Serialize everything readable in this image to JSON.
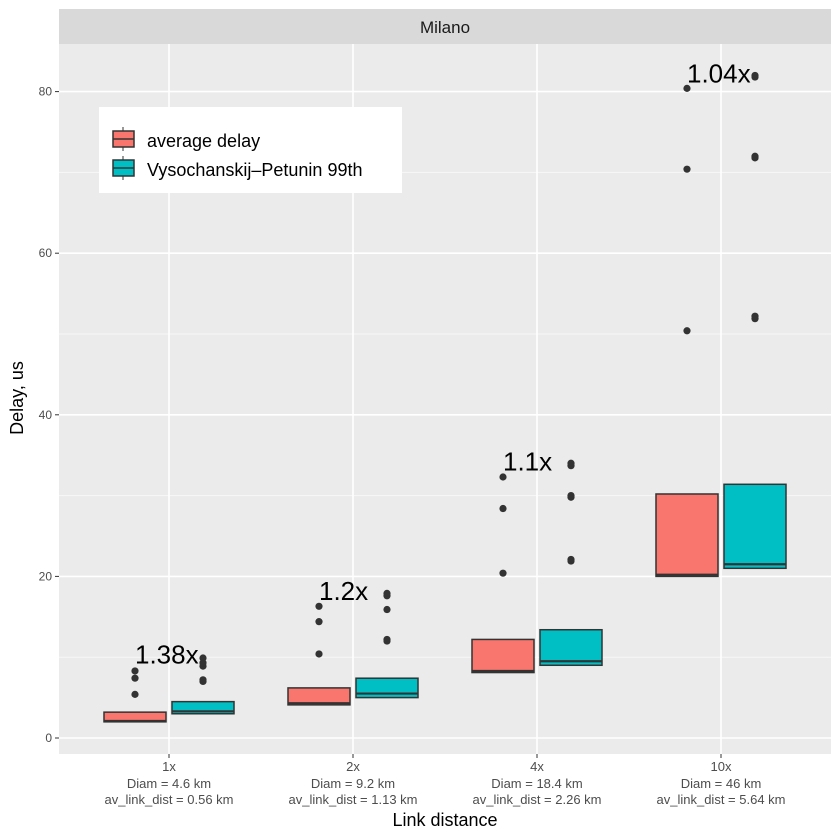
{
  "chart_data": {
    "type": "box",
    "facet": "Milano",
    "xlabel": "Link distance",
    "ylabel": "Delay, us",
    "ylim": [
      -2,
      86
    ],
    "yticks": [
      0,
      20,
      40,
      60,
      80
    ],
    "grid": true,
    "legend_position": "top-left",
    "categories": [
      {
        "label": "1x",
        "lines": [
          "Diam =  4.6 km",
          "av_link_dist =  0.56 km"
        ]
      },
      {
        "label": "2x",
        "lines": [
          "Diam =  9.2 km",
          "av_link_dist =  1.13 km"
        ]
      },
      {
        "label": "4x",
        "lines": [
          "Diam =  18.4 km",
          "av_link_dist =  2.26 km"
        ]
      },
      {
        "label": "10x",
        "lines": [
          "Diam =  46 km",
          "av_link_dist =  5.64 km"
        ]
      }
    ],
    "series": [
      {
        "name": "average delay",
        "color": "#F8766D",
        "boxes": [
          {
            "q1": 2.0,
            "median": 2.1,
            "q3": 3.2,
            "outliers": [
              5.4,
              7.4,
              8.3
            ]
          },
          {
            "q1": 4.1,
            "median": 4.3,
            "q3": 6.2,
            "outliers": [
              10.4,
              14.4,
              16.3
            ]
          },
          {
            "q1": 8.1,
            "median": 8.3,
            "q3": 12.2,
            "outliers": [
              20.4,
              28.4,
              32.3
            ]
          },
          {
            "q1": 20.0,
            "median": 20.2,
            "q3": 30.2,
            "outliers": [
              50.4,
              70.4,
              80.4
            ]
          }
        ]
      },
      {
        "name": "Vysochanskij–Petunin 99th",
        "color": "#00BFC4",
        "boxes": [
          {
            "q1": 3.0,
            "median": 3.3,
            "q3": 4.5,
            "outliers": [
              7.0,
              7.2,
              8.9,
              9.3,
              9.9
            ]
          },
          {
            "q1": 5.0,
            "median": 5.5,
            "q3": 7.4,
            "outliers": [
              12.0,
              12.2,
              15.9,
              17.6,
              17.9
            ]
          },
          {
            "q1": 9.0,
            "median": 9.5,
            "q3": 13.4,
            "outliers": [
              21.9,
              22.1,
              29.8,
              30.0,
              33.7,
              34.0
            ]
          },
          {
            "q1": 21.0,
            "median": 21.5,
            "q3": 31.4,
            "outliers": [
              51.9,
              52.2,
              71.8,
              72.0,
              81.8,
              82.0
            ]
          }
        ]
      }
    ],
    "annotations": [
      {
        "text": "1.38x",
        "category": 0,
        "y": 9.2
      },
      {
        "text": "1.2x",
        "category": 1,
        "y": 17.1
      },
      {
        "text": "1.1x",
        "category": 2,
        "y": 33.1
      },
      {
        "text": "1.04x",
        "category": 3,
        "y": 81.1
      }
    ]
  }
}
